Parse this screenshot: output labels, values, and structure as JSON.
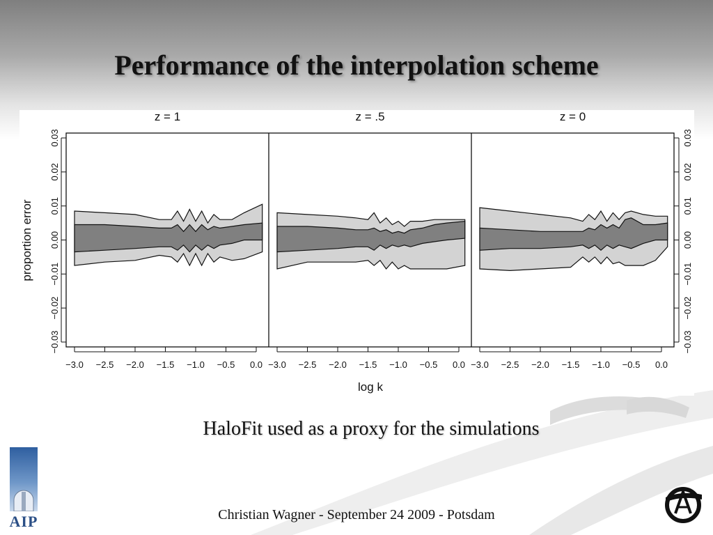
{
  "slide": {
    "title": "Performance of  the interpolation scheme",
    "caption": "HaloFit used as a proxy for the simulations",
    "footer": "Christian Wagner - September 24 2009 - Potsdam",
    "logo_left_text": "AIP"
  },
  "colors": {
    "outer_band": "#d3d3d3",
    "inner_band": "#808080",
    "axis": "#111111",
    "accent_blue": "#2b4f86"
  },
  "chart_data": {
    "type": "area",
    "xlabel": "log k",
    "ylabel": "proportion error",
    "xlim": [
      -3.0,
      0.0
    ],
    "ylim": [
      -0.03,
      0.03
    ],
    "x_ticks": [
      -3.0,
      -2.5,
      -2.0,
      -1.5,
      -1.0,
      -0.5,
      0.0
    ],
    "x_tick_labels": [
      "−3.0",
      "−2.5",
      "−2.0",
      "−1.5",
      "−1.0",
      "−0.5",
      "0.0"
    ],
    "y_ticks": [
      -0.03,
      -0.02,
      -0.01,
      0.0,
      0.01,
      0.02,
      0.03
    ],
    "y_tick_labels": [
      "−0.03",
      "−0.02",
      "−0.01",
      "0.00",
      "0.01",
      "0.02",
      "0.03"
    ],
    "grid": false,
    "panels": [
      {
        "label": "z = 1",
        "x": [
          -3.0,
          -2.5,
          -2.0,
          -1.6,
          -1.4,
          -1.3,
          -1.2,
          -1.1,
          -1.0,
          -0.9,
          -0.8,
          -0.7,
          -0.6,
          -0.4,
          -0.2,
          0.1
        ],
        "outer_upper": [
          0.0085,
          0.008,
          0.0075,
          0.006,
          0.006,
          0.0085,
          0.0055,
          0.009,
          0.0055,
          0.0085,
          0.005,
          0.0075,
          0.006,
          0.006,
          0.008,
          0.0105
        ],
        "outer_lower": [
          -0.0075,
          -0.0065,
          -0.006,
          -0.0045,
          -0.005,
          -0.0065,
          -0.004,
          -0.0075,
          -0.004,
          -0.0075,
          -0.004,
          -0.0065,
          -0.005,
          -0.006,
          -0.0055,
          -0.0035
        ],
        "inner_upper": [
          0.0045,
          0.0045,
          0.004,
          0.0035,
          0.0035,
          0.0045,
          0.0025,
          0.0045,
          0.0025,
          0.0045,
          0.003,
          0.004,
          0.0035,
          0.004,
          0.0045,
          0.005
        ],
        "inner_lower": [
          -0.0035,
          -0.003,
          -0.0025,
          -0.002,
          -0.002,
          -0.003,
          -0.0015,
          -0.0035,
          -0.0015,
          -0.003,
          -0.0015,
          -0.0025,
          -0.0015,
          -0.001,
          0.0,
          0.0
        ]
      },
      {
        "label": "z = .5",
        "x": [
          -3.0,
          -2.5,
          -2.0,
          -1.7,
          -1.5,
          -1.4,
          -1.3,
          -1.2,
          -1.1,
          -1.0,
          -0.9,
          -0.8,
          -0.6,
          -0.4,
          -0.2,
          0.1
        ],
        "outer_upper": [
          0.008,
          0.0075,
          0.007,
          0.0065,
          0.006,
          0.008,
          0.005,
          0.0065,
          0.0045,
          0.0055,
          0.004,
          0.0055,
          0.0055,
          0.006,
          0.006,
          0.006
        ],
        "outer_lower": [
          -0.0085,
          -0.0065,
          -0.0065,
          -0.0065,
          -0.006,
          -0.0075,
          -0.006,
          -0.0085,
          -0.0065,
          -0.0085,
          -0.0075,
          -0.0085,
          -0.0085,
          -0.0085,
          -0.0085,
          -0.0075
        ],
        "inner_upper": [
          0.004,
          0.004,
          0.0035,
          0.003,
          0.003,
          0.0035,
          0.0025,
          0.003,
          0.002,
          0.0025,
          0.002,
          0.003,
          0.0035,
          0.0045,
          0.005,
          0.0055
        ],
        "inner_lower": [
          -0.0035,
          -0.003,
          -0.0025,
          -0.002,
          -0.002,
          -0.003,
          -0.0015,
          -0.0025,
          -0.0015,
          -0.002,
          -0.0015,
          -0.002,
          -0.001,
          -0.0005,
          0.0,
          0.0005
        ]
      },
      {
        "label": "z = 0",
        "x": [
          -3.0,
          -2.5,
          -2.0,
          -1.5,
          -1.3,
          -1.2,
          -1.1,
          -1.0,
          -0.9,
          -0.8,
          -0.7,
          -0.6,
          -0.5,
          -0.3,
          -0.1,
          0.1
        ],
        "outer_upper": [
          0.0095,
          0.0085,
          0.0075,
          0.0065,
          0.0055,
          0.0075,
          0.006,
          0.0085,
          0.0055,
          0.008,
          0.006,
          0.008,
          0.0085,
          0.0075,
          0.007,
          0.007
        ],
        "outer_lower": [
          -0.0085,
          -0.009,
          -0.0085,
          -0.008,
          -0.005,
          -0.0065,
          -0.005,
          -0.007,
          -0.005,
          -0.007,
          -0.0065,
          -0.0075,
          -0.0075,
          -0.0075,
          -0.006,
          -0.002
        ],
        "inner_upper": [
          0.0035,
          0.003,
          0.0025,
          0.0025,
          0.0025,
          0.0035,
          0.003,
          0.0045,
          0.0035,
          0.0045,
          0.0035,
          0.006,
          0.0065,
          0.0045,
          0.0045,
          0.005
        ],
        "inner_lower": [
          -0.003,
          -0.0025,
          -0.0025,
          -0.002,
          -0.0015,
          -0.0025,
          -0.0015,
          -0.003,
          -0.0015,
          -0.0025,
          -0.0015,
          -0.002,
          -0.0025,
          -0.001,
          0.0,
          0.0
        ]
      }
    ]
  }
}
